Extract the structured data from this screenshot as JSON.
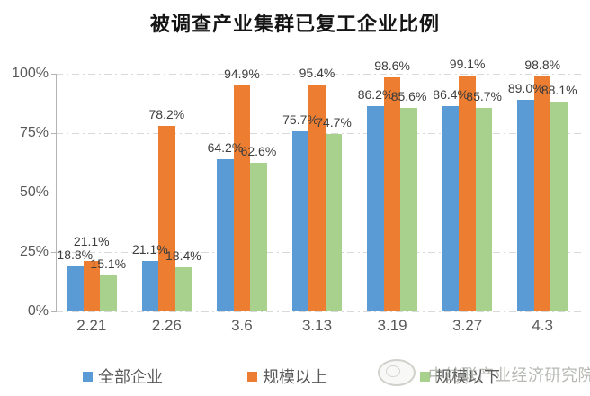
{
  "page": {
    "title": "被调查产业集群已复工企业比例"
  },
  "watermark": {
    "text": "中纺联产业经济研究院",
    "logo": "circle-logo"
  },
  "colors": {
    "background": "#ffffff",
    "axis": "#b3b3b3",
    "gridline": "#d9d9d9",
    "tick_label": "#595959",
    "data_label": "#3d3d3d",
    "title": "#141414",
    "legend_text": "#595959",
    "series_blue": "#5b9bd5",
    "series_orange": "#ed7d31",
    "series_green": "#a9d18e"
  },
  "chart_data": {
    "type": "bar",
    "title": "被调查产业集群已复工企业比例",
    "categories": [
      "2.21",
      "2.26",
      "3.6",
      "3.13",
      "3.19",
      "3.27",
      "4.3"
    ],
    "series": [
      {
        "name": "全部企业",
        "color": "#5b9bd5",
        "values": [
          18.8,
          21.1,
          64.2,
          75.7,
          86.2,
          86.4,
          89.0
        ]
      },
      {
        "name": "规模以上",
        "color": "#ed7d31",
        "values": [
          21.1,
          78.2,
          94.9,
          95.4,
          98.6,
          99.1,
          98.8
        ]
      },
      {
        "name": "规模以下",
        "color": "#a9d18e",
        "values": [
          15.1,
          18.4,
          62.6,
          74.7,
          85.6,
          85.7,
          88.1
        ]
      }
    ],
    "value_label_suffix": "%",
    "value_label_decimals": 1,
    "yticks": [
      {
        "value": 0,
        "label": "0%"
      },
      {
        "value": 25,
        "label": "25%"
      },
      {
        "value": 50,
        "label": "50%"
      },
      {
        "value": 75,
        "label": "75%"
      },
      {
        "value": 100,
        "label": "100%"
      }
    ],
    "ylim": [
      0,
      100
    ],
    "grid": true,
    "gridline_style": "dash-dot",
    "legend_position": "bottom"
  }
}
